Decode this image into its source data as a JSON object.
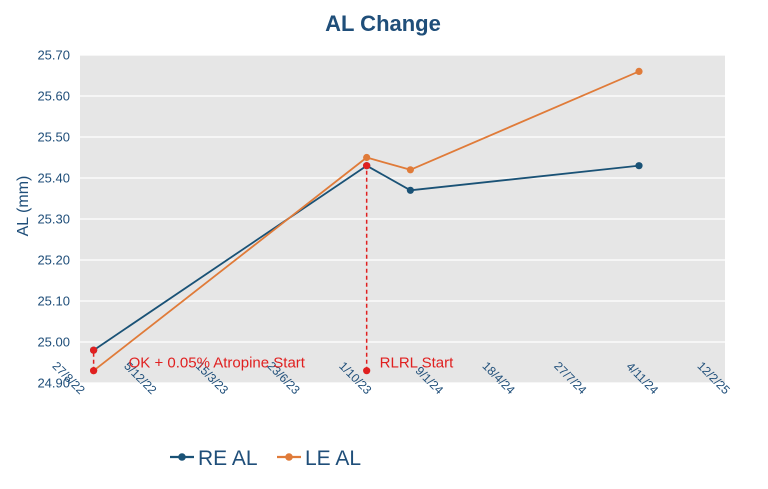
{
  "chart_data": {
    "type": "line",
    "title": "AL Change",
    "xlabel": "",
    "ylabel": "AL (mm)",
    "x_tick_labels": [
      "27/8/22",
      "5/12/22",
      "15/3/23",
      "23/6/23",
      "1/10/23",
      "9/1/24",
      "18/4/24",
      "27/7/24",
      "4/11/24",
      "12/2/25"
    ],
    "y_tick_labels": [
      "24.90",
      "25.00",
      "25.10",
      "25.20",
      "25.30",
      "25.40",
      "25.50",
      "25.60",
      "25.70"
    ],
    "ylim": [
      24.9,
      25.7
    ],
    "xlim_days": [
      0,
      900
    ],
    "grid": "horizontal",
    "legend_position": "bottom",
    "series": [
      {
        "name": "RE AL",
        "color": "#1a5276",
        "x": [
          "15/9/22",
          "1/10/23",
          "1/12/23",
          "15/10/24"
        ],
        "x_days": [
          19,
          400,
          461,
          780
        ],
        "y": [
          24.98,
          25.43,
          25.37,
          25.43
        ]
      },
      {
        "name": "LE AL",
        "color": "#e07b39",
        "x": [
          "15/9/22",
          "1/10/23",
          "1/12/23",
          "15/10/24"
        ],
        "x_days": [
          19,
          400,
          461,
          780
        ],
        "y": [
          24.93,
          25.45,
          25.42,
          25.66
        ]
      }
    ],
    "annotations": [
      {
        "label": "OK + 0.05% Atropine Start",
        "color": "#e02020",
        "x_days": 19,
        "y_from": 24.93,
        "y_to": 24.98
      },
      {
        "label": "RLRL Start",
        "color": "#e02020",
        "x_days": 400,
        "y_from": 24.93,
        "y_to": 25.43
      }
    ],
    "colors": {
      "plot_background": "#e6e6e6",
      "gridline": "#ffffff",
      "axis_text": "#1f4e79"
    }
  }
}
